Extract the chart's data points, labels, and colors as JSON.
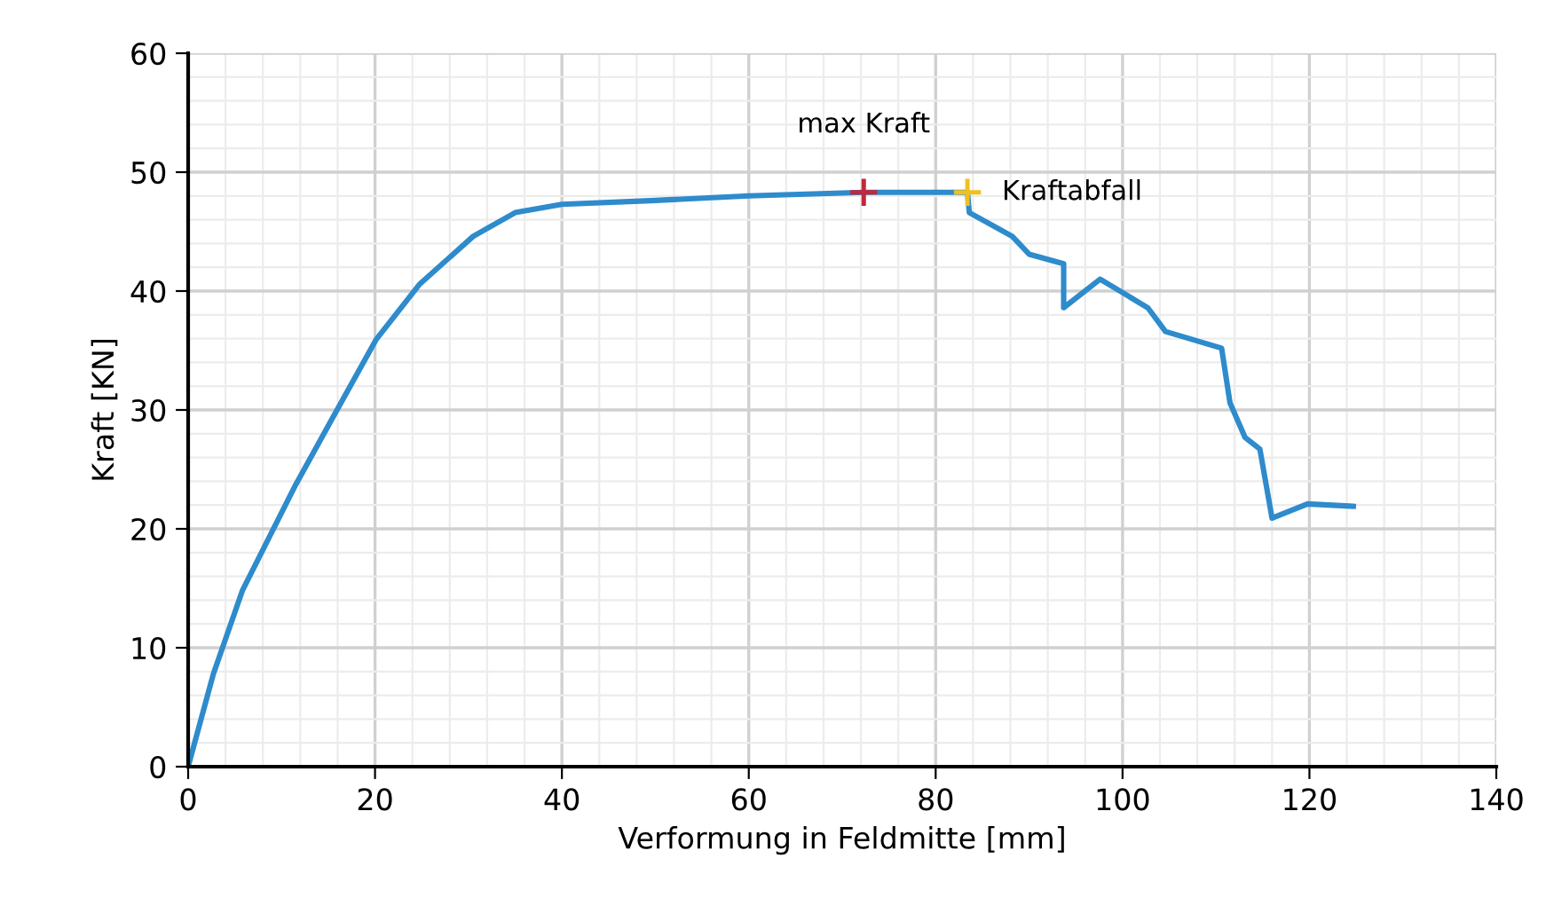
{
  "chart_data": {
    "type": "line",
    "xlabel": "Verformung in Feldmitte [mm]",
    "ylabel": "Kraft [KN]",
    "xlim": [
      0,
      140
    ],
    "xticks": [
      0,
      20,
      40,
      60,
      80,
      100,
      120,
      140
    ],
    "ylim": [
      0,
      60
    ],
    "yticks": [
      0,
      10,
      20,
      30,
      40,
      50,
      60
    ],
    "grid": true,
    "marker": "none",
    "line_style": "solid",
    "series": [
      {
        "color": "#2e8bcc",
        "x": [
          0,
          2.7,
          5.8,
          11.5,
          15.3,
          20.1,
          24.8,
          30.5,
          35,
          40,
          49.5,
          60,
          72.3,
          83.4,
          83.6,
          88.2,
          90,
          93.7,
          93.7,
          97.6,
          102.7,
          104.6,
          110.6,
          111.5,
          113.1,
          114.7,
          116,
          119.8,
          124.7
        ],
        "values": [
          0,
          7.8,
          14.8,
          23.7,
          29.1,
          35.9,
          40.6,
          44.6,
          46.6,
          47.3,
          47.6,
          48.0,
          48.3,
          48.3,
          46.6,
          44.6,
          43.1,
          42.3,
          38.6,
          41.0,
          38.6,
          36.6,
          35.2,
          30.6,
          27.7,
          26.7,
          20.9,
          22.1,
          21.9
        ]
      },
      {
        "type": "scatter",
        "marker": "cross",
        "color": "#c0283c",
        "x": [
          72.3
        ],
        "values": [
          48.3
        ]
      },
      {
        "type": "scatter",
        "marker": "cross",
        "color": "#f0c020",
        "x": [
          83.4
        ],
        "values": [
          48.3
        ]
      }
    ],
    "annotations": [
      {
        "text": "max Kraft",
        "x": 72.3,
        "y": 48.3
      },
      {
        "text": "Kraftabfall",
        "x": 83.4,
        "y": 48.3
      }
    ]
  }
}
